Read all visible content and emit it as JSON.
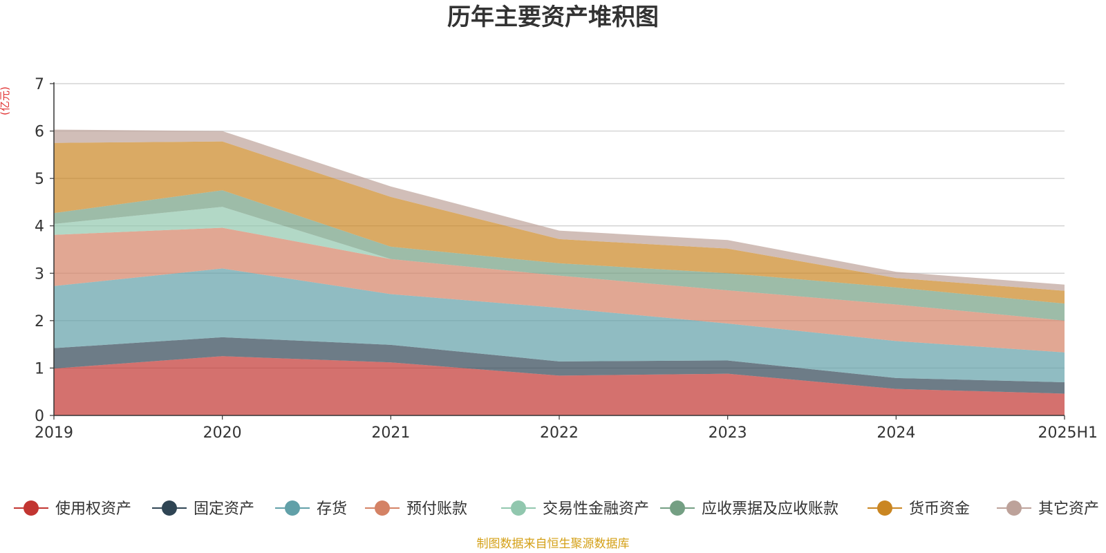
{
  "chart_data": {
    "type": "area",
    "stacked": true,
    "title": "历年主要资产堆积图",
    "ylabel": "(亿元)",
    "xlabel": "",
    "ylim": [
      0,
      7
    ],
    "yticks": [
      "0",
      "1",
      "2",
      "3",
      "4",
      "5",
      "6",
      "7"
    ],
    "categories": [
      "2019",
      "2020",
      "2021",
      "2022",
      "2023",
      "2024",
      "2025H1"
    ],
    "grid": true,
    "legend_position": "bottom",
    "series": [
      {
        "name": "使用权资产",
        "color": "#c23531",
        "values": [
          0.99,
          1.25,
          1.12,
          0.84,
          0.88,
          0.56,
          0.46
        ]
      },
      {
        "name": "固定资产",
        "color": "#2f4554",
        "values": [
          0.43,
          0.4,
          0.37,
          0.3,
          0.28,
          0.23,
          0.24
        ]
      },
      {
        "name": "存货",
        "color": "#61a0a8",
        "values": [
          1.31,
          1.45,
          1.07,
          1.13,
          0.78,
          0.78,
          0.63
        ]
      },
      {
        "name": "预付账款",
        "color": "#d48265",
        "values": [
          1.08,
          0.86,
          0.74,
          0.68,
          0.7,
          0.77,
          0.67
        ]
      },
      {
        "name": "交易性金融资产",
        "color": "#91c7ae",
        "values": [
          0.23,
          0.44,
          0.0,
          0.0,
          0.0,
          0.0,
          0.0
        ]
      },
      {
        "name": "应收票据及应收账款",
        "color": "#749f83",
        "values": [
          0.23,
          0.35,
          0.26,
          0.26,
          0.36,
          0.36,
          0.36
        ]
      },
      {
        "name": "货币资金",
        "color": "#ca8622",
        "values": [
          1.48,
          1.03,
          1.05,
          0.51,
          0.52,
          0.2,
          0.27
        ]
      },
      {
        "name": "其它资产",
        "color": "#bda29a",
        "values": [
          0.28,
          0.22,
          0.22,
          0.18,
          0.18,
          0.13,
          0.13
        ]
      }
    ],
    "source": "制图数据来自恒生聚源数据库"
  }
}
